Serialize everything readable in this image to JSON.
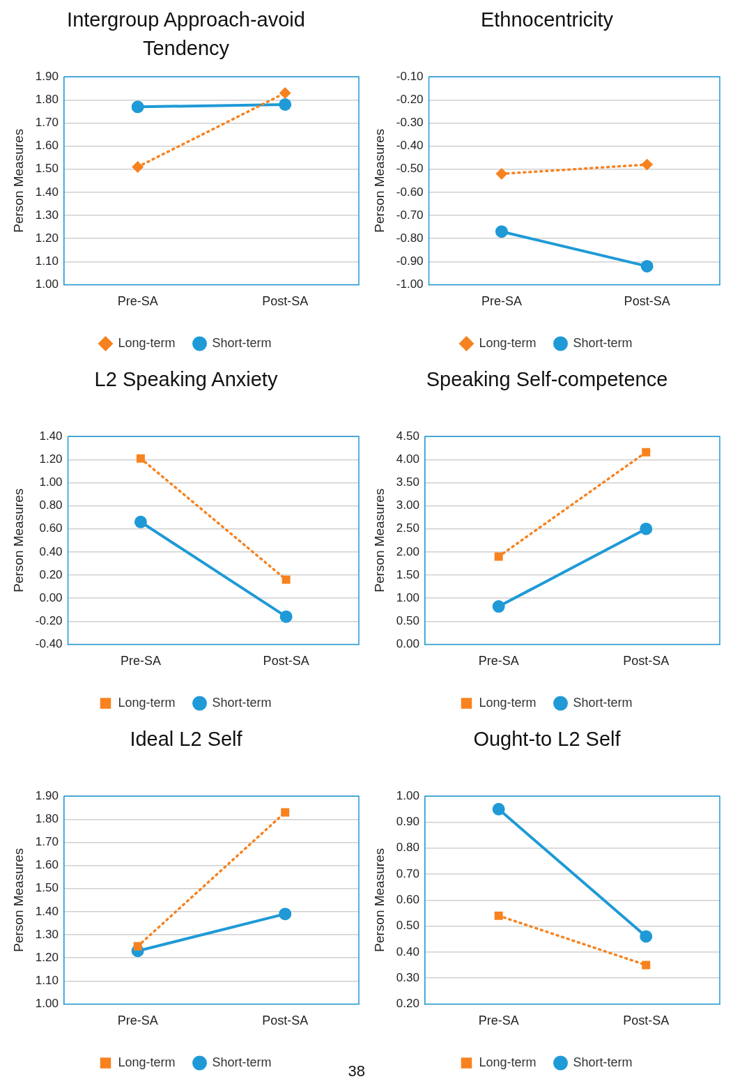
{
  "chart_data": [
    {
      "type": "line",
      "title": "Intergroup Approach-avoid Tendency",
      "ylabel": "Person Measures",
      "categories": [
        "Pre-SA",
        "Post-SA"
      ],
      "ylim": [
        1.0,
        1.9
      ],
      "yticks": [
        {
          "value": 1.0,
          "label": "1.00"
        },
        {
          "value": 1.1,
          "label": "1.10"
        },
        {
          "value": 1.2,
          "label": "1.20"
        },
        {
          "value": 1.3,
          "label": "1.30"
        },
        {
          "value": 1.4,
          "label": "1.40"
        },
        {
          "value": 1.5,
          "label": "1.50"
        },
        {
          "value": 1.6,
          "label": "1.60"
        },
        {
          "value": 1.7,
          "label": "1.70"
        },
        {
          "value": 1.8,
          "label": "1.80"
        },
        {
          "value": 1.9,
          "label": "1.90"
        }
      ],
      "grid": "y",
      "legend": "bottom",
      "series": [
        {
          "name": "Short-term",
          "color": "#1f9ad6",
          "values": [
            1.77,
            1.78
          ],
          "marker": "circle",
          "line_style": "solid"
        },
        {
          "name": "Long-term",
          "color": "#f7821f",
          "values": [
            1.51,
            1.83
          ],
          "marker": "diamond",
          "line_style": "dotted"
        }
      ]
    },
    {
      "type": "line",
      "title": "Ethnocentricity",
      "ylabel": "Person Measures",
      "categories": [
        "Pre-SA",
        "Post-SA"
      ],
      "ylim": [
        -1.0,
        -0.1
      ],
      "yticks": [
        {
          "value": -1.0,
          "label": "-1.00"
        },
        {
          "value": -0.9,
          "label": "-0.90"
        },
        {
          "value": -0.8,
          "label": "-0.80"
        },
        {
          "value": -0.7,
          "label": "-0.70"
        },
        {
          "value": -0.6,
          "label": "-0.60"
        },
        {
          "value": -0.5,
          "label": "-0.50"
        },
        {
          "value": -0.4,
          "label": "-0.40"
        },
        {
          "value": -0.3,
          "label": "-0.30"
        },
        {
          "value": -0.2,
          "label": "-0.20"
        },
        {
          "value": -0.1,
          "label": "-0.10"
        }
      ],
      "grid": "y",
      "legend": "bottom",
      "series": [
        {
          "name": "Short-term",
          "color": "#1f9ad6",
          "values": [
            -0.77,
            -0.92
          ],
          "marker": "circle",
          "line_style": "solid"
        },
        {
          "name": "Long-term",
          "color": "#f7821f",
          "values": [
            -0.52,
            -0.48
          ],
          "marker": "diamond",
          "line_style": "dotted"
        }
      ]
    },
    {
      "type": "line",
      "title": "L2 Speaking Anxiety",
      "ylabel": "Person Measures",
      "categories": [
        "Pre-SA",
        "Post-SA"
      ],
      "ylim": [
        -0.4,
        1.4
      ],
      "yticks": [
        {
          "value": -0.4,
          "label": "-0.40"
        },
        {
          "value": -0.2,
          "label": "-0.20"
        },
        {
          "value": 0,
          "label": "0.00"
        },
        {
          "value": 0.2,
          "label": "0.20"
        },
        {
          "value": 0.4,
          "label": "0.40"
        },
        {
          "value": 0.6,
          "label": "0.60"
        },
        {
          "value": 0.8,
          "label": "0.80"
        },
        {
          "value": 1.0,
          "label": "1.00"
        },
        {
          "value": 1.2,
          "label": "1.20"
        },
        {
          "value": 1.4,
          "label": "1.40"
        }
      ],
      "grid": "y",
      "legend": "bottom",
      "series": [
        {
          "name": "Short-term",
          "color": "#1f9ad6",
          "values": [
            0.66,
            -0.16
          ],
          "marker": "circle",
          "line_style": "solid"
        },
        {
          "name": "Long-term",
          "color": "#f7821f",
          "values": [
            1.21,
            0.16
          ],
          "marker": "square",
          "line_style": "dotted"
        }
      ]
    },
    {
      "type": "line",
      "title": "Speaking Self-competence",
      "ylabel": "Person Measures",
      "categories": [
        "Pre-SA",
        "Post-SA"
      ],
      "ylim": [
        0,
        4.5
      ],
      "yticks": [
        {
          "value": 0,
          "label": "0.00"
        },
        {
          "value": 0.5,
          "label": "0.50"
        },
        {
          "value": 1.0,
          "label": "1.00"
        },
        {
          "value": 1.5,
          "label": "1.50"
        },
        {
          "value": 2.0,
          "label": "2.00"
        },
        {
          "value": 2.5,
          "label": "2.50"
        },
        {
          "value": 3.0,
          "label": "3.00"
        },
        {
          "value": 3.5,
          "label": "3.50"
        },
        {
          "value": 4.0,
          "label": "4.00"
        },
        {
          "value": 4.5,
          "label": "4.50"
        }
      ],
      "grid": "y",
      "legend": "bottom",
      "series": [
        {
          "name": "Short-term",
          "color": "#1f9ad6",
          "values": [
            0.82,
            2.5
          ],
          "marker": "circle",
          "line_style": "solid"
        },
        {
          "name": "Long-term",
          "color": "#f7821f",
          "values": [
            1.9,
            4.16
          ],
          "marker": "square",
          "line_style": "dotted"
        }
      ]
    },
    {
      "type": "line",
      "title": "Ideal L2 Self",
      "ylabel": "Person Measures",
      "categories": [
        "Pre-SA",
        "Post-SA"
      ],
      "ylim": [
        1.0,
        1.9
      ],
      "yticks": [
        {
          "value": 1.0,
          "label": "1.00"
        },
        {
          "value": 1.1,
          "label": "1.10"
        },
        {
          "value": 1.2,
          "label": "1.20"
        },
        {
          "value": 1.3,
          "label": "1.30"
        },
        {
          "value": 1.4,
          "label": "1.40"
        },
        {
          "value": 1.5,
          "label": "1.50"
        },
        {
          "value": 1.6,
          "label": "1.60"
        },
        {
          "value": 1.7,
          "label": "1.70"
        },
        {
          "value": 1.8,
          "label": "1.80"
        },
        {
          "value": 1.9,
          "label": "1.90"
        }
      ],
      "grid": "y",
      "legend": "bottom",
      "annotations": [
        "38"
      ],
      "series": [
        {
          "name": "Short-term",
          "color": "#1f9ad6",
          "values": [
            1.23,
            1.39
          ],
          "marker": "circle",
          "line_style": "solid"
        },
        {
          "name": "Long-term",
          "color": "#f7821f",
          "values": [
            1.25,
            1.83
          ],
          "marker": "square",
          "line_style": "dotted"
        }
      ]
    },
    {
      "type": "line",
      "title": "Ought-to L2 Self",
      "ylabel": "Person Measures",
      "categories": [
        "Pre-SA",
        "Post-SA"
      ],
      "ylim": [
        0.2,
        1.0
      ],
      "yticks": [
        {
          "value": 0.2,
          "label": "0.20"
        },
        {
          "value": 0.3,
          "label": "0.30"
        },
        {
          "value": 0.4,
          "label": "0.40"
        },
        {
          "value": 0.5,
          "label": "0.50"
        },
        {
          "value": 0.6,
          "label": "0.60"
        },
        {
          "value": 0.7,
          "label": "0.70"
        },
        {
          "value": 0.8,
          "label": "0.80"
        },
        {
          "value": 0.9,
          "label": "0.90"
        },
        {
          "value": 1.0,
          "label": "1.00"
        }
      ],
      "grid": "y",
      "legend": "bottom",
      "series": [
        {
          "name": "Short-term",
          "color": "#1f9ad6",
          "values": [
            0.95,
            0.46
          ],
          "marker": "circle",
          "line_style": "solid"
        },
        {
          "name": "Long-term",
          "color": "#f7821f",
          "values": [
            0.54,
            0.35
          ],
          "marker": "square",
          "line_style": "dotted"
        }
      ]
    }
  ]
}
